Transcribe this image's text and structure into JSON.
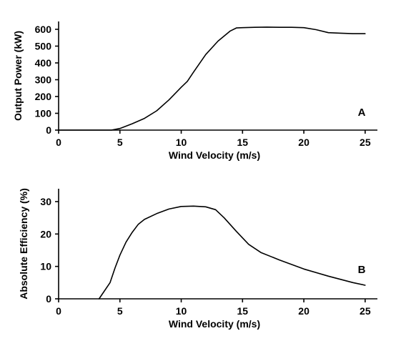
{
  "chart_data": [
    {
      "type": "line",
      "panel_label": "A",
      "xlabel": "Wind Velocity (m/s)",
      "ylabel": "Output Power (kW)",
      "xlim": [
        0,
        26
      ],
      "ylim": [
        0,
        640
      ],
      "xticks": [
        0,
        5,
        10,
        15,
        20,
        25
      ],
      "yticks": [
        0,
        100,
        200,
        300,
        400,
        500,
        600
      ],
      "grid": false,
      "series": [
        {
          "x": [
            4.3,
            5,
            6,
            7,
            8,
            9,
            10,
            10.5,
            11,
            12,
            13,
            14,
            14.5,
            15,
            16,
            17,
            18,
            19,
            20,
            21,
            22,
            23,
            24,
            25
          ],
          "y": [
            0,
            10,
            38,
            70,
            115,
            180,
            255,
            290,
            345,
            450,
            530,
            590,
            608,
            610,
            612,
            613,
            612,
            612,
            610,
            598,
            580,
            577,
            574,
            574
          ]
        }
      ]
    },
    {
      "type": "line",
      "panel_label": "B",
      "xlabel": "Wind Velocity (m/s)",
      "ylabel": "Absolute Efficiency (%)",
      "xlim": [
        0,
        26
      ],
      "ylim": [
        0,
        33
      ],
      "xticks": [
        0,
        5,
        10,
        15,
        20,
        25
      ],
      "yticks": [
        0,
        10,
        20,
        30
      ],
      "grid": false,
      "series": [
        {
          "x": [
            3.3,
            4.2,
            4.6,
            5,
            5.5,
            6,
            6.5,
            7,
            8,
            9,
            10,
            11,
            12,
            12.8,
            13.5,
            14.5,
            15.5,
            16.5,
            18,
            20,
            22,
            24,
            25
          ],
          "y": [
            0,
            5,
            9.5,
            13.5,
            17.5,
            20.5,
            23,
            24.5,
            26.3,
            27.7,
            28.5,
            28.6,
            28.4,
            27.5,
            25,
            20.8,
            16.8,
            14.3,
            12,
            9.2,
            7,
            5,
            4.2
          ]
        }
      ]
    }
  ]
}
